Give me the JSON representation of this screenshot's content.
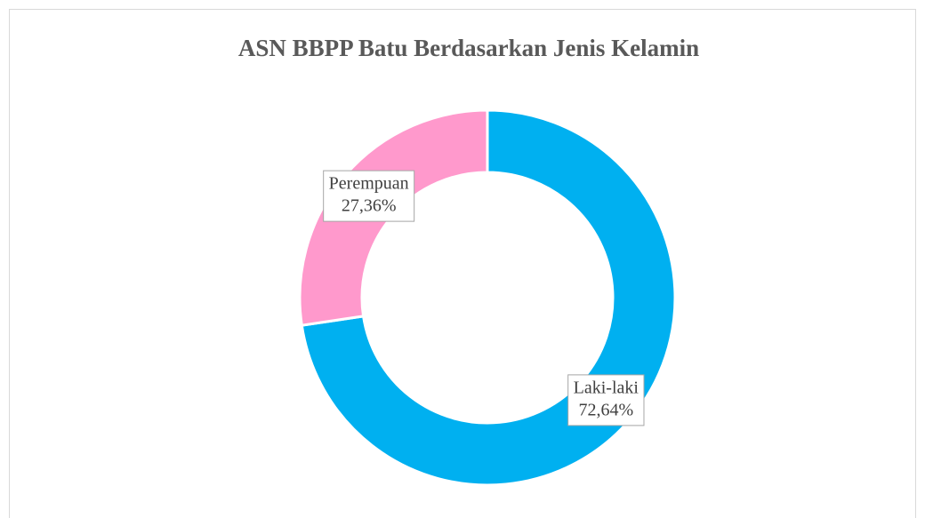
{
  "chart_data": {
    "type": "donut",
    "title": "ASN BBPP Batu Berdasarkan Jenis Kelamin",
    "categories": [
      "Laki-laki",
      "Perempuan"
    ],
    "values": [
      72.64,
      27.36
    ],
    "value_labels": [
      "72,64%",
      "27,36%"
    ],
    "colors": [
      "#00b0f0",
      "#ff99cc"
    ]
  }
}
